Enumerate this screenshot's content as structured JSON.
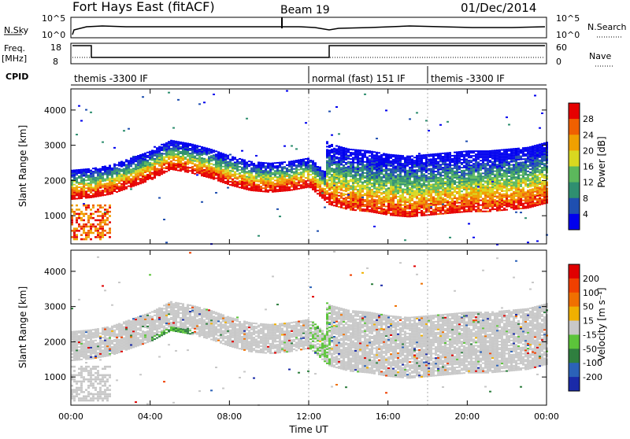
{
  "header": {
    "title": "Fort Hays East (fitACF)",
    "beam": "Beam 19",
    "date": "01/Dec/2014"
  },
  "top_panels": {
    "nsky_label": "N.Sky",
    "nsky_left_ticks": [
      "10^5",
      "10^0"
    ],
    "nsky_right_ticks": [
      "10^5",
      "10^0"
    ],
    "nsearch_label": "N.Search",
    "freq_label_1": "Freq.",
    "freq_label_2": "[MHz]",
    "freq_ticks": [
      "18",
      "8"
    ],
    "nave_label": "Nave",
    "nave_ticks": [
      "60",
      "0"
    ],
    "cpid_label": "CPID",
    "cpid_segments": [
      {
        "label": "themis -3300 IF",
        "start": 0.0,
        "end": 12.0
      },
      {
        "label": "normal (fast) 151 IF",
        "start": 12.0,
        "end": 18.0
      },
      {
        "label": "themis -3300 IF",
        "start": 18.0,
        "end": 24.0
      }
    ]
  },
  "chart_data": [
    {
      "type": "heatmap",
      "name": "power",
      "ylabel": "Slant Range [km]",
      "y_ticks": [
        "4000",
        "3000",
        "2000",
        "1000"
      ],
      "y_tick_values": [
        4000,
        3000,
        2000,
        1000
      ],
      "ylim": [
        200,
        4600
      ],
      "xlim": [
        0,
        24
      ],
      "colorbar_label": "Power [dB]",
      "colorbar_ticks": [
        "28",
        "24",
        "20",
        "16",
        "12",
        "8",
        "4"
      ],
      "colorbar_colors": [
        "#0000ee",
        "#1f4fb0",
        "#2f8f70",
        "#5cb85c",
        "#d8d820",
        "#f0a000",
        "#f06000",
        "#e60000"
      ],
      "band_profile": [
        {
          "t": 0.0,
          "r": 1600
        },
        {
          "t": 1.0,
          "r": 1650
        },
        {
          "t": 2.0,
          "r": 1750
        },
        {
          "t": 3.0,
          "r": 1950
        },
        {
          "t": 4.0,
          "r": 2150
        },
        {
          "t": 5.0,
          "r": 2450
        },
        {
          "t": 6.0,
          "r": 2350
        },
        {
          "t": 7.0,
          "r": 2200
        },
        {
          "t": 8.0,
          "r": 2000
        },
        {
          "t": 9.0,
          "r": 1850
        },
        {
          "t": 10.0,
          "r": 1800
        },
        {
          "t": 11.0,
          "r": 1850
        },
        {
          "t": 12.0,
          "r": 1950
        },
        {
          "t": 13.0,
          "r": 1450
        },
        {
          "t": 14.0,
          "r": 1300
        },
        {
          "t": 15.0,
          "r": 1250
        },
        {
          "t": 16.0,
          "r": 1150
        },
        {
          "t": 17.0,
          "r": 1100
        },
        {
          "t": 18.0,
          "r": 1150
        },
        {
          "t": 19.0,
          "r": 1200
        },
        {
          "t": 20.0,
          "r": 1250
        },
        {
          "t": 21.0,
          "r": 1250
        },
        {
          "t": 22.0,
          "r": 1300
        },
        {
          "t": 23.0,
          "r": 1350
        },
        {
          "t": 24.0,
          "r": 1500
        }
      ]
    },
    {
      "type": "heatmap",
      "name": "velocity",
      "ylabel": "Slant Range [km]",
      "y_ticks": [
        "4000",
        "3000",
        "2000",
        "1000"
      ],
      "y_tick_values": [
        4000,
        3000,
        2000,
        1000
      ],
      "ylim": [
        200,
        4600
      ],
      "xlim": [
        0,
        24
      ],
      "colorbar_label": "Velocity [m s⁻¹]",
      "colorbar_ticks": [
        "200",
        "100",
        "50",
        "15",
        "-15",
        "-50",
        "-100",
        "-200"
      ],
      "colorbar_colors": [
        "#1a2aa8",
        "#2b62b8",
        "#2f7f3f",
        "#5cc43a",
        "#c8c8c8",
        "#f0b000",
        "#f07000",
        "#f04000",
        "#e00000"
      ]
    }
  ],
  "x_axis": {
    "ticks": [
      "00:00",
      "04:00",
      "08:00",
      "12:00",
      "16:00",
      "20:00",
      "00:00"
    ],
    "tick_values": [
      0,
      4,
      8,
      12,
      16,
      20,
      24
    ],
    "label": "Time UT"
  }
}
